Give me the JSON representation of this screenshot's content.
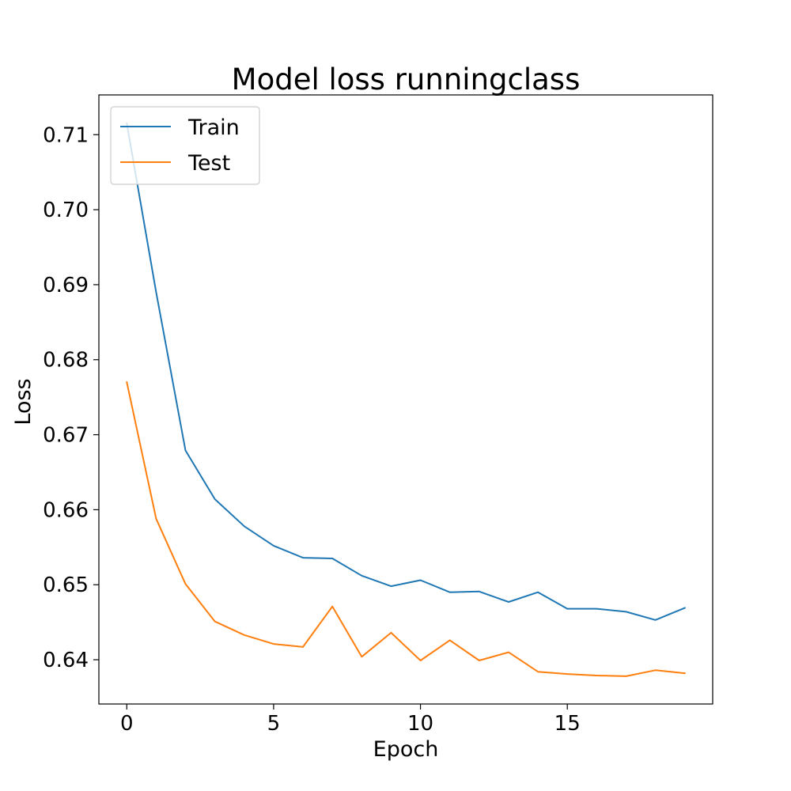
{
  "chart_data": {
    "type": "line",
    "title": "Model loss runningclass",
    "xlabel": "Epoch",
    "ylabel": "Loss",
    "xlim": [
      -0.95,
      19.95
    ],
    "ylim": [
      0.6341,
      0.7153
    ],
    "xticks": [
      0,
      5,
      10,
      15
    ],
    "xtick_labels": [
      "0",
      "5",
      "10",
      "15"
    ],
    "yticks": [
      0.64,
      0.65,
      0.66,
      0.67,
      0.68,
      0.69,
      0.7,
      0.71
    ],
    "ytick_labels": [
      "0.64",
      "0.65",
      "0.66",
      "0.67",
      "0.68",
      "0.69",
      "0.70",
      "0.71"
    ],
    "grid": false,
    "legend_position": "upper-left",
    "x": [
      0,
      1,
      2,
      3,
      4,
      5,
      6,
      7,
      8,
      9,
      10,
      11,
      12,
      13,
      14,
      15,
      16,
      17,
      18,
      19
    ],
    "series": [
      {
        "name": "Train",
        "color": "#1f77b4",
        "values": [
          0.7115,
          0.689,
          0.6679,
          0.6614,
          0.6578,
          0.6552,
          0.6536,
          0.6535,
          0.6512,
          0.6498,
          0.6506,
          0.649,
          0.6491,
          0.6477,
          0.649,
          0.6468,
          0.6468,
          0.6464,
          0.6453,
          0.6469
        ]
      },
      {
        "name": "Test",
        "color": "#ff7f0e",
        "values": [
          0.677,
          0.6588,
          0.6501,
          0.6451,
          0.6433,
          0.6421,
          0.6417,
          0.6471,
          0.6404,
          0.6436,
          0.6399,
          0.6426,
          0.6399,
          0.641,
          0.6384,
          0.6381,
          0.6379,
          0.6378,
          0.6386,
          0.6382
        ]
      }
    ]
  }
}
